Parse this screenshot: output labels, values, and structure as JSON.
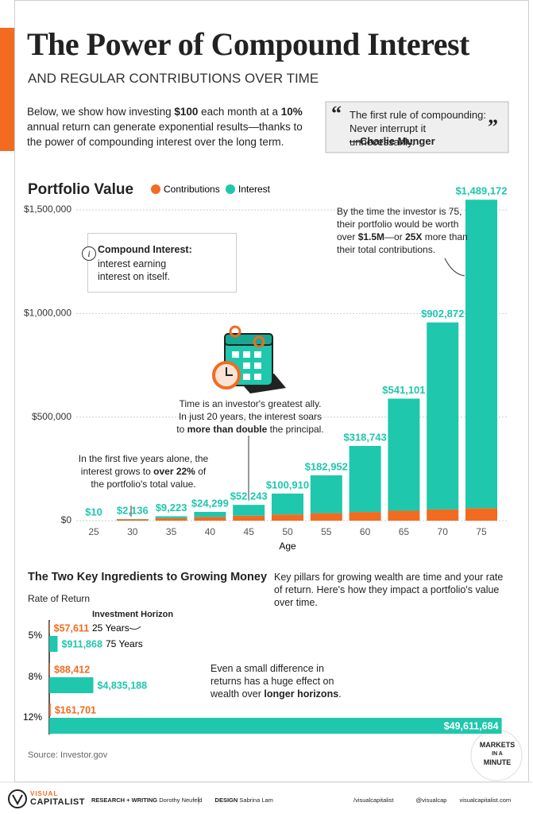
{
  "header": {
    "title": "The Power of Compound Interest",
    "subtitle": "AND REGULAR CONTRIBUTIONS OVER TIME",
    "intro": [
      {
        "text": "Below, we show how investing "
      },
      {
        "text": "$100",
        "bold": true
      },
      {
        "text": " each month at a "
      },
      {
        "text": "10%",
        "bold": true
      },
      {
        "text": " annual return can generate exponential results—thanks to the power of compounding interest over the long term."
      }
    ],
    "quote": {
      "open_mark": "“",
      "text": "The first rule of compounding: Never interrupt it unnecessarily.",
      "close_mark": "”",
      "author": "—Charlie Munger"
    }
  },
  "chart_data": [
    {
      "type": "bar",
      "stacked": true,
      "title": "Portfolio Value",
      "x_label": "Age",
      "categories": [
        "25",
        "30",
        "35",
        "40",
        "45",
        "50",
        "55",
        "60",
        "65",
        "70",
        "75"
      ],
      "series": [
        {
          "name": "Contributions",
          "color": "#f26b21",
          "values": [
            100,
            6000,
            12000,
            18000,
            24000,
            30000,
            36000,
            42000,
            48000,
            54000,
            60000
          ]
        },
        {
          "name": "Interest",
          "color": "#1fc7ad",
          "values": [
            10,
            2136,
            9223,
            24299,
            52243,
            100910,
            182952,
            318743,
            541101,
            902872,
            1489172
          ],
          "value_labels": [
            "$10",
            "$2,136",
            "$9,223",
            "$24,299",
            "$52,243",
            "$100,910",
            "$182,952",
            "$318,743",
            "$541,101",
            "$902,872",
            "$1,489,172"
          ]
        }
      ],
      "ylim": [
        0,
        1600000
      ],
      "yticks": [
        {
          "value": 0,
          "label": "$0"
        },
        {
          "value": 500000,
          "label": "$500,000"
        },
        {
          "value": 1000000,
          "label": "$1,000,000"
        },
        {
          "value": 1500000,
          "label": "$1,500,000"
        }
      ],
      "grid": true,
      "legend": "top",
      "callout": {
        "icon": "i",
        "title": "Compound Interest:",
        "text": "interest earning interest on itself."
      },
      "annotations": [
        [
          {
            "text": "In the first five years alone, the interest grows to "
          },
          {
            "text": "over 22%",
            "bold": true
          },
          {
            "text": " of the portfolio's total value."
          }
        ],
        [
          {
            "text": "Time is an investor's greatest ally. In just 20 years, the interest soars to "
          },
          {
            "text": "more than double",
            "bold": true
          },
          {
            "text": " the principal."
          }
        ],
        [
          {
            "text": "By the time the investor is 75, their portfolio would be worth over "
          },
          {
            "text": "$1.5M",
            "bold": true
          },
          {
            "text": "—or "
          },
          {
            "text": "25X",
            "bold": true
          },
          {
            "text": " more than their total contributions."
          }
        ]
      ]
    },
    {
      "type": "hbar",
      "title": "The Two Key Ingredients to Growing Money",
      "y_label": "Rate of Return",
      "legend_title": "Investment Horizon",
      "categories": [
        "5%",
        "8%",
        "12%"
      ],
      "series": [
        {
          "name": "25 Years",
          "color": "#f26b21",
          "values": [
            57611,
            88412,
            161701
          ],
          "value_labels": [
            "$57,611",
            "$88,412",
            "$161,701"
          ]
        },
        {
          "name": "75 Years",
          "color": "#1fc7ad",
          "values": [
            911868,
            4835188,
            49611684
          ],
          "value_labels": [
            "$911,868",
            "$4,835,188",
            "$49,611,684"
          ]
        }
      ],
      "xlim": [
        0,
        50000000
      ],
      "description": "Key pillars for growing wealth are time and your rate of return. Here's how they impact a portfolio's value over time.",
      "annotation": [
        {
          "text": "Even a small difference in returns has a huge effect on wealth over "
        },
        {
          "text": "longer horizons",
          "bold": true
        },
        {
          "text": "."
        }
      ]
    }
  ],
  "footer": {
    "source": "Source: Investor.gov",
    "badge": [
      "MARKETS",
      "IN A",
      "MINUTE"
    ],
    "brand": [
      "VISUAL",
      "CAPITALIST"
    ],
    "credits": [
      {
        "role": "RESEARCH + WRITING",
        "name": "Dorothy Neufeld"
      },
      {
        "role": "DESIGN",
        "name": "Sabrina Lam"
      }
    ],
    "social": [
      "/visualcapitalist",
      "@visualcap",
      "visualcapitalist.com"
    ]
  }
}
